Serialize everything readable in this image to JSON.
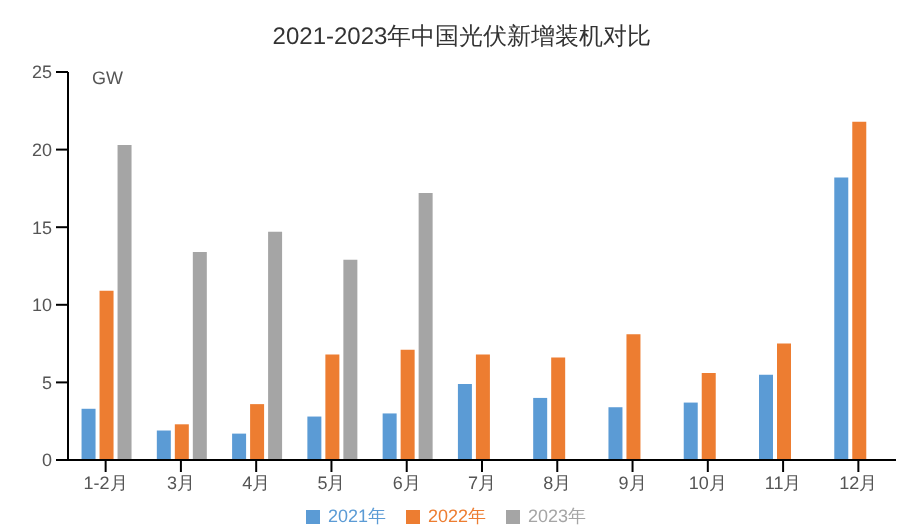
{
  "chart_data": {
    "type": "bar",
    "title": "2021-2023年中国光伏新增装机对比",
    "ylabel": "GW",
    "categories": [
      "1-2月",
      "3月",
      "4月",
      "5月",
      "6月",
      "7月",
      "8月",
      "9月",
      "10月",
      "11月",
      "12月"
    ],
    "series": [
      {
        "name": "2021年",
        "color": "#5b9bd5",
        "values": [
          3.3,
          1.9,
          1.7,
          2.8,
          3.0,
          4.9,
          4.0,
          3.4,
          3.7,
          5.5,
          18.2
        ]
      },
      {
        "name": "2022年",
        "color": "#ed7d31",
        "values": [
          10.9,
          2.3,
          3.6,
          6.8,
          7.1,
          6.8,
          6.6,
          8.1,
          5.6,
          7.5,
          21.8
        ]
      },
      {
        "name": "2023年",
        "color": "#a5a5a5",
        "values": [
          20.3,
          13.4,
          14.7,
          12.9,
          17.2,
          null,
          null,
          null,
          null,
          null,
          null
        ]
      }
    ],
    "ylim": [
      0,
      25
    ],
    "yticks": [
      0,
      5,
      10,
      15,
      20,
      25
    ],
    "grid": false,
    "legend": "bottom"
  }
}
